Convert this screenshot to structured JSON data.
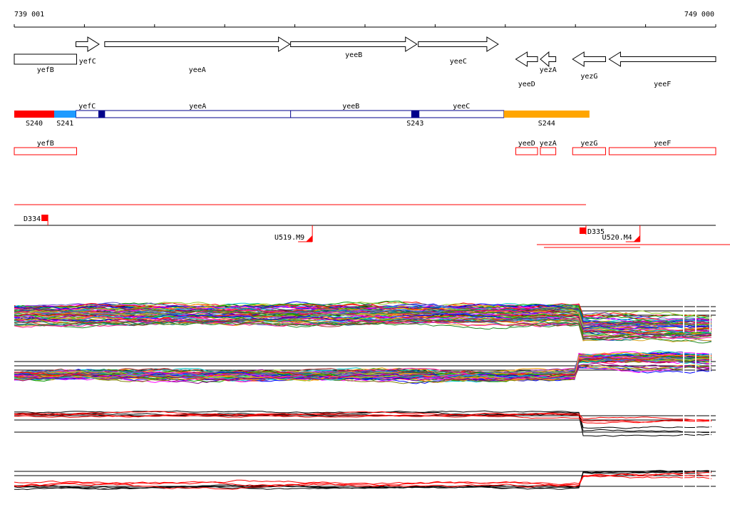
{
  "ruler": {
    "start_label": "739 001",
    "end_label": "749 000",
    "start": 739001,
    "end": 749000
  },
  "genes": [
    {
      "name": "yefB",
      "start": 739001,
      "end": 739890,
      "strand": "-"
    },
    {
      "name": "yefC",
      "start": 739880,
      "end": 740210,
      "strand": "+"
    },
    {
      "name": "yeeA",
      "start": 740290,
      "end": 742930,
      "strand": "+"
    },
    {
      "name": "yeeB",
      "start": 742940,
      "end": 744740,
      "strand": "+"
    },
    {
      "name": "yeeC",
      "start": 744760,
      "end": 745900,
      "strand": "+"
    },
    {
      "name": "yeeD",
      "start": 746150,
      "end": 746460,
      "strand": "-"
    },
    {
      "name": "yezA",
      "start": 746500,
      "end": 746720,
      "strand": "-"
    },
    {
      "name": "yezG",
      "start": 746960,
      "end": 747430,
      "strand": "-"
    },
    {
      "name": "yeeF",
      "start": 747480,
      "end": 749000,
      "strand": "-"
    }
  ],
  "segments": [
    {
      "label": "S240",
      "start": 739001,
      "end": 739570,
      "color": "#ff0000"
    },
    {
      "label": "S241",
      "start": 739570,
      "end": 739880,
      "color": "#1e9bff"
    },
    {
      "label": "",
      "start": 740200,
      "end": 740290,
      "color": "#00008b"
    },
    {
      "label": "S243",
      "start": 744660,
      "end": 744770,
      "color": "#00008b"
    },
    {
      "label": "S244",
      "start": 745980,
      "end": 747200,
      "color": "#ffa500"
    }
  ],
  "operon_genes": [
    {
      "name": "yefC",
      "start": 739880,
      "end": 740200
    },
    {
      "name": "yeeA",
      "start": 740290,
      "end": 742940
    },
    {
      "name": "yeeB",
      "start": 742940,
      "end": 744660
    },
    {
      "name": "yeeC",
      "start": 744770,
      "end": 745980
    }
  ],
  "boxed_genes": [
    {
      "name": "yefB",
      "start": 739001,
      "end": 739890
    },
    {
      "name": "yeeD",
      "start": 746150,
      "end": 746460
    },
    {
      "name": "yezA",
      "start": 746500,
      "end": 746720
    },
    {
      "name": "yezG",
      "start": 746960,
      "end": 747430
    },
    {
      "name": "yeeF",
      "start": 747480,
      "end": 749000
    }
  ],
  "features": [
    {
      "label": "D334",
      "position": 739480,
      "type": "down"
    },
    {
      "label": "D335",
      "position": 747150,
      "type": "down"
    },
    {
      "label": "U519.M9",
      "position": 743250,
      "type": "up"
    },
    {
      "label": "U520.M4",
      "position": 747920,
      "type": "up"
    }
  ],
  "colors": {
    "gene_outline": "#000000",
    "operon_outline": "#00008b",
    "feature": "#ff0000",
    "profile_strand": "#000000",
    "profile_opposite": "#ff0000"
  }
}
